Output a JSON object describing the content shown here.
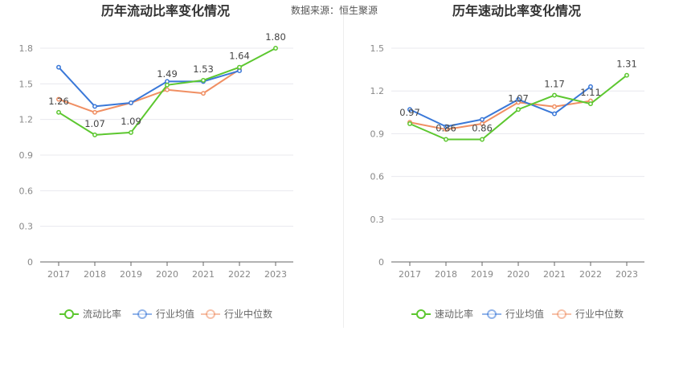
{
  "source_label": "数据来源：恒生聚源",
  "chart_data": [
    {
      "type": "line",
      "title": "历年流动比率变化情况",
      "categories": [
        "2017",
        "2018",
        "2019",
        "2020",
        "2021",
        "2022",
        "2023"
      ],
      "ylim": [
        0,
        1.8
      ],
      "yticks": [
        "0",
        "0.3",
        "0.6",
        "0.9",
        "1.2",
        "1.5",
        "1.8"
      ],
      "grid": true,
      "legend_position": "bottom",
      "series": [
        {
          "name": "流动比率",
          "color": "#5cc72f",
          "values": [
            1.26,
            1.07,
            1.09,
            1.49,
            1.53,
            1.64,
            1.8
          ],
          "labels": [
            "1.26",
            "1.07",
            "1.09",
            "1.49",
            "1.53",
            "1.64",
            "1.80"
          ]
        },
        {
          "name": "行业均值",
          "color": "#3a78d8",
          "values": [
            1.64,
            1.31,
            1.34,
            1.52,
            1.52,
            1.61,
            null
          ]
        },
        {
          "name": "行业中位数",
          "color": "#f08f63",
          "values": [
            1.37,
            1.26,
            1.34,
            1.45,
            1.42,
            1.62,
            null
          ]
        }
      ]
    },
    {
      "type": "line",
      "title": "历年速动比率变化情况",
      "categories": [
        "2017",
        "2018",
        "2019",
        "2020",
        "2021",
        "2022",
        "2023"
      ],
      "ylim": [
        0,
        1.5
      ],
      "yticks": [
        "0",
        "0.3",
        "0.6",
        "0.9",
        "1.2",
        "1.5"
      ],
      "grid": true,
      "legend_position": "bottom",
      "series": [
        {
          "name": "速动比率",
          "color": "#5cc72f",
          "values": [
            0.97,
            0.86,
            0.86,
            1.07,
            1.17,
            1.11,
            1.31
          ],
          "labels": [
            "0.97",
            "0.86",
            "0.86",
            "1.07",
            "1.17",
            "1.11",
            "1.31"
          ]
        },
        {
          "name": "行业均值",
          "color": "#3a78d8",
          "values": [
            1.07,
            0.95,
            1.0,
            1.14,
            1.04,
            1.23,
            null
          ]
        },
        {
          "name": "行业中位数",
          "color": "#f08f63",
          "values": [
            0.98,
            0.93,
            0.97,
            1.12,
            1.09,
            1.13,
            null
          ]
        }
      ]
    }
  ]
}
